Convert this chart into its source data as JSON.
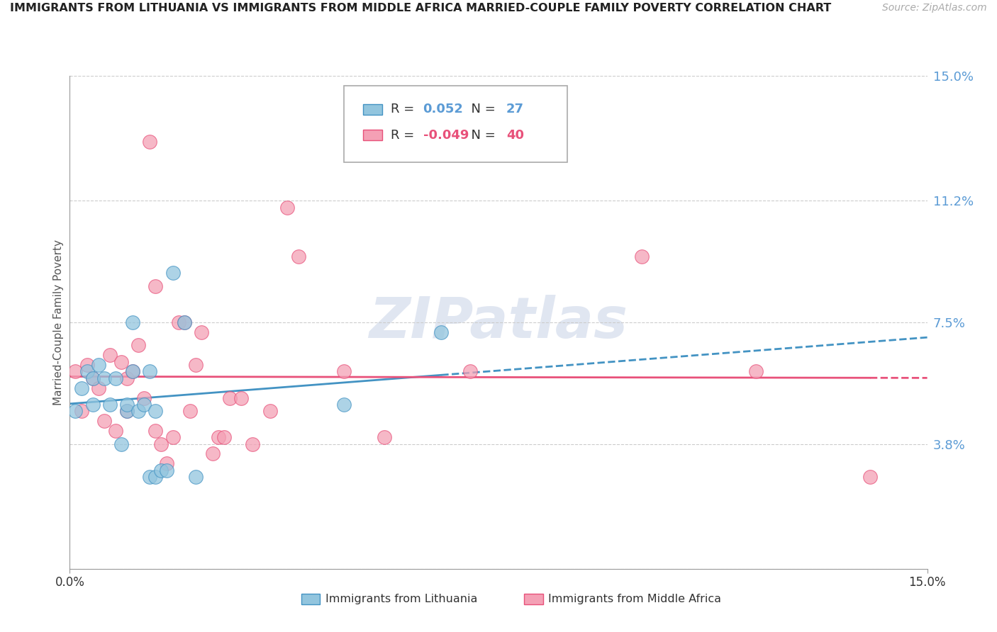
{
  "title": "IMMIGRANTS FROM LITHUANIA VS IMMIGRANTS FROM MIDDLE AFRICA MARRIED-COUPLE FAMILY POVERTY CORRELATION CHART",
  "source": "Source: ZipAtlas.com",
  "ylabel": "Married-Couple Family Poverty",
  "y_tick_vals": [
    0.0,
    0.038,
    0.075,
    0.112,
    0.15
  ],
  "y_tick_labels": [
    "",
    "3.8%",
    "7.5%",
    "11.2%",
    "15.0%"
  ],
  "xlim": [
    0.0,
    0.15
  ],
  "ylim": [
    0.0,
    0.15
  ],
  "legend_r1_val": "0.052",
  "legend_r2_val": "-0.049",
  "legend_n1": "27",
  "legend_n2": "40",
  "series1_label": "Immigrants from Lithuania",
  "series2_label": "Immigrants from Middle Africa",
  "color1": "#92c5de",
  "color2": "#f4a0b5",
  "line1_color": "#4393c3",
  "line2_color": "#e8517a",
  "background_color": "#ffffff",
  "watermark_color": "#ccd6e8",
  "series1_x": [
    0.001,
    0.002,
    0.003,
    0.004,
    0.004,
    0.005,
    0.006,
    0.007,
    0.008,
    0.009,
    0.01,
    0.01,
    0.011,
    0.011,
    0.012,
    0.013,
    0.014,
    0.014,
    0.015,
    0.015,
    0.016,
    0.017,
    0.018,
    0.02,
    0.022,
    0.048,
    0.065
  ],
  "series1_y": [
    0.048,
    0.055,
    0.06,
    0.05,
    0.058,
    0.062,
    0.058,
    0.05,
    0.058,
    0.038,
    0.048,
    0.05,
    0.075,
    0.06,
    0.048,
    0.05,
    0.06,
    0.028,
    0.048,
    0.028,
    0.03,
    0.03,
    0.09,
    0.075,
    0.028,
    0.05,
    0.072
  ],
  "series2_x": [
    0.001,
    0.002,
    0.003,
    0.004,
    0.005,
    0.006,
    0.007,
    0.008,
    0.009,
    0.01,
    0.01,
    0.011,
    0.012,
    0.013,
    0.014,
    0.015,
    0.015,
    0.016,
    0.017,
    0.018,
    0.019,
    0.02,
    0.021,
    0.022,
    0.023,
    0.025,
    0.026,
    0.027,
    0.028,
    0.03,
    0.032,
    0.035,
    0.038,
    0.04,
    0.048,
    0.055,
    0.07,
    0.1,
    0.12,
    0.14
  ],
  "series2_y": [
    0.06,
    0.048,
    0.062,
    0.058,
    0.055,
    0.045,
    0.065,
    0.042,
    0.063,
    0.058,
    0.048,
    0.06,
    0.068,
    0.052,
    0.13,
    0.086,
    0.042,
    0.038,
    0.032,
    0.04,
    0.075,
    0.075,
    0.048,
    0.062,
    0.072,
    0.035,
    0.04,
    0.04,
    0.052,
    0.052,
    0.038,
    0.048,
    0.11,
    0.095,
    0.06,
    0.04,
    0.06,
    0.095,
    0.06,
    0.028
  ]
}
